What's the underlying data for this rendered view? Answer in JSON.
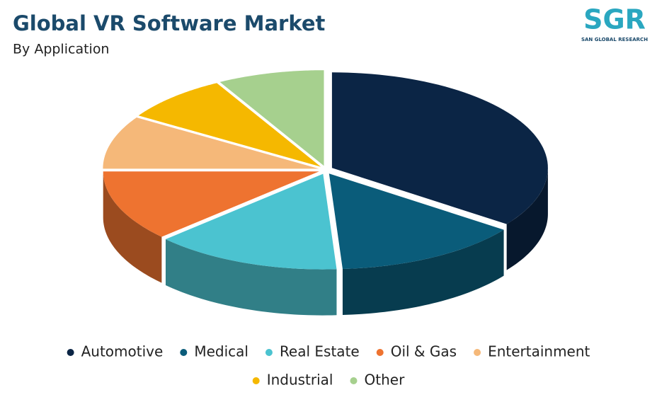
{
  "chart_data": {
    "type": "pie",
    "title": "Global VR Software Market",
    "subtitle": "By Application",
    "categories": [
      "Automotive",
      "Medical",
      "Real Estate",
      "Oil & Gas",
      "Entertainment",
      "Industrial",
      "Other"
    ],
    "values": [
      35,
      14,
      14,
      12,
      9,
      8,
      8
    ],
    "colors": [
      "#0b2545",
      "#0a5c7a",
      "#4bc3d0",
      "#ee7330",
      "#f5b879",
      "#f5b800",
      "#a6d08e"
    ]
  },
  "logo": {
    "mark": "SGR",
    "name": "SAN GLOBAL RESEARCH"
  }
}
